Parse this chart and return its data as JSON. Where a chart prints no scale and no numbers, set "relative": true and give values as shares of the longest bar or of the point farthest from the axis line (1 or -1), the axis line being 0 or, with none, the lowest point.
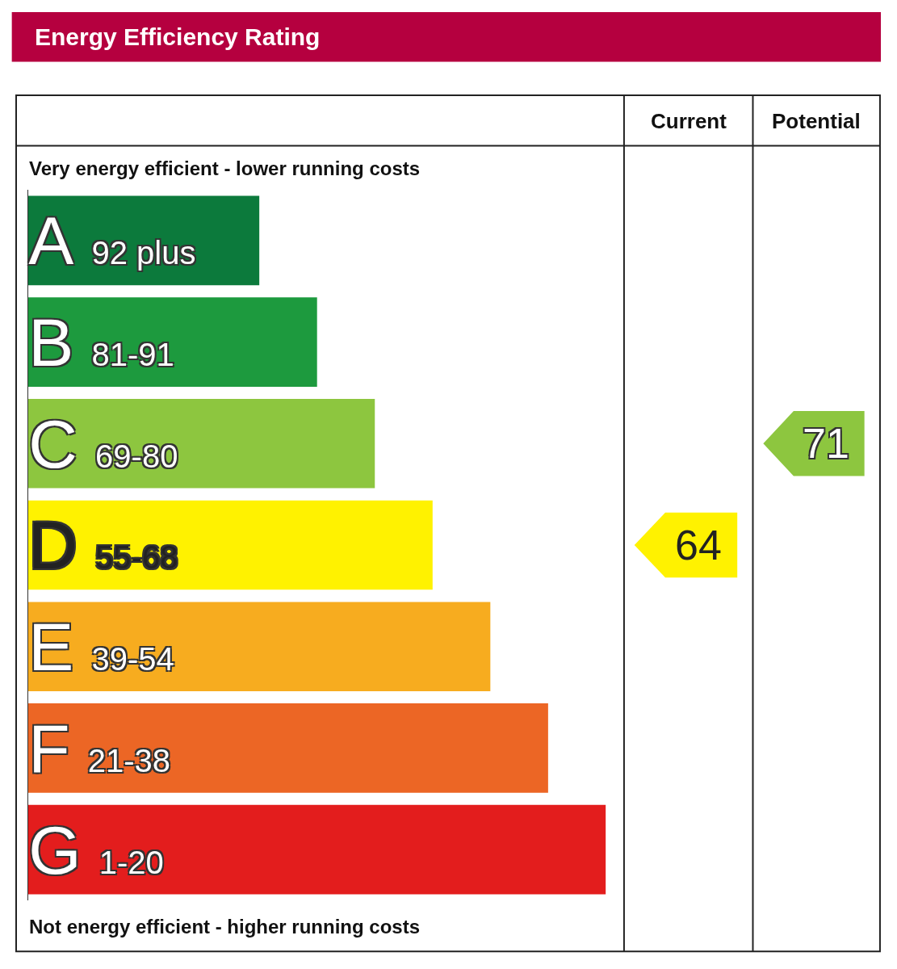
{
  "chart_data": {
    "type": "bar",
    "orientation": "horizontal",
    "relative": true,
    "title": "Energy Efficiency Rating",
    "categories": [
      "A 92 plus",
      "B 81-91",
      "C 69-80",
      "D 55-68",
      "E 39-54",
      "F 21-38",
      "G 1-20"
    ],
    "values": [
      0.4,
      0.5,
      0.6,
      0.7,
      0.8,
      0.9,
      1.0
    ],
    "colors": [
      "#0c7a3c",
      "#1d9a3e",
      "#8dc63f",
      "#fff200",
      "#f7ac1f",
      "#ec6625",
      "#e31d1d"
    ],
    "annotations": [
      "Very energy efficient - lower running costs",
      "Not energy efficient - higher running costs",
      "Current",
      "Potential",
      "64",
      "71"
    ]
  }
}
